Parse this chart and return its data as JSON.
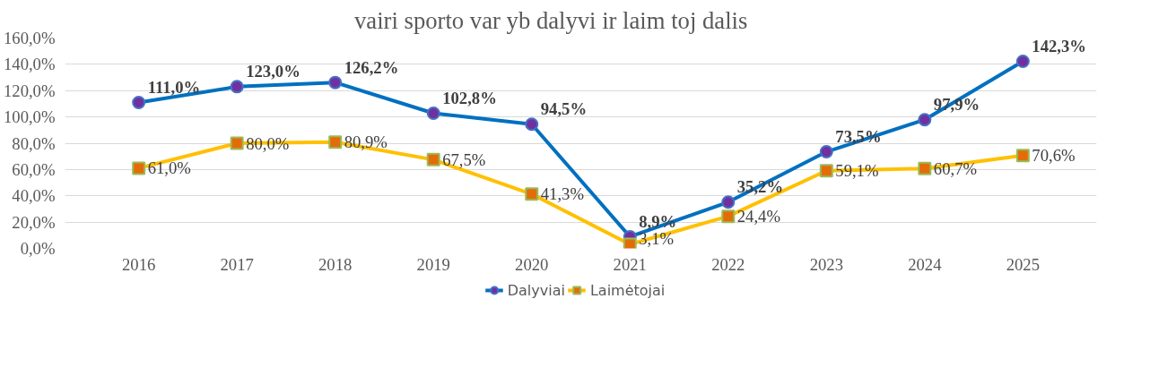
{
  "chart_data": {
    "type": "line",
    "title": "vairi   sporto var  yb   dalyvi   ir laim  toj   dalis",
    "categories": [
      "2016",
      "2017",
      "2018",
      "2019",
      "2020",
      "2021",
      "2022",
      "2023",
      "2024",
      "2025"
    ],
    "ylim": [
      0,
      160
    ],
    "yticks": [
      {
        "value": 0,
        "label": "0,0%"
      },
      {
        "value": 20,
        "label": "20,0%"
      },
      {
        "value": 40,
        "label": "40,0%"
      },
      {
        "value": 60,
        "label": "60,0%"
      },
      {
        "value": 80,
        "label": "80,0%"
      },
      {
        "value": 100,
        "label": "100,0%"
      },
      {
        "value": 120,
        "label": "120,0%"
      },
      {
        "value": 140,
        "label": "140,0%"
      },
      {
        "value": 160,
        "label": "160,0%"
      }
    ],
    "grid": "y",
    "legend": "bottom",
    "series": [
      {
        "name": "Dalyviai",
        "color": "#0070c0",
        "marker": "circle",
        "values": [
          111.0,
          123.0,
          126.2,
          102.8,
          94.5,
          8.9,
          35.2,
          73.5,
          97.9,
          142.3
        ],
        "value_labels": [
          "111,0%",
          "123,0%",
          "126,2%",
          "102,8%",
          "94,5%",
          "8,9%",
          "35,2%",
          "73,5%",
          "97,9%",
          "142,3%"
        ]
      },
      {
        "name": "Laimėtojai",
        "color": "#ffc000",
        "marker": "square",
        "values": [
          61.0,
          80.0,
          80.9,
          67.5,
          41.3,
          3.1,
          24.4,
          59.1,
          60.7,
          70.6
        ],
        "value_labels": [
          "61,0%",
          "80,0%",
          "80,9%",
          "67,5%",
          "41,3%",
          "3,1%",
          "24,4%",
          "59,1%",
          "60,7%",
          "70,6%"
        ]
      }
    ]
  }
}
